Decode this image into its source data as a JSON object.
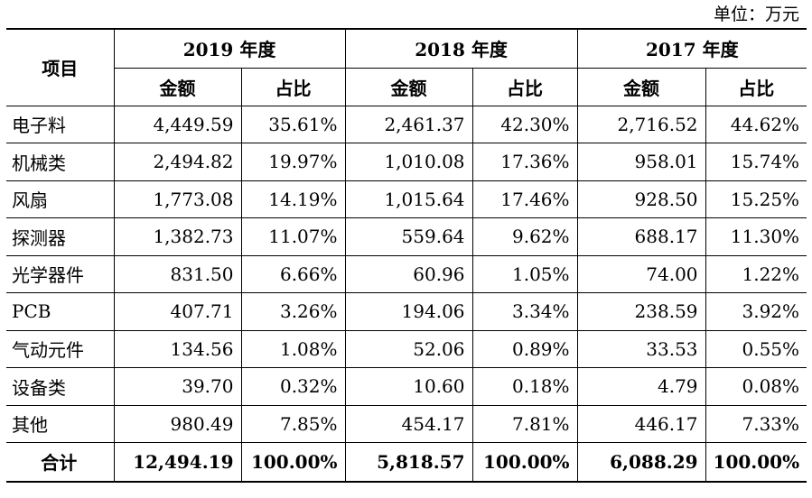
{
  "unit_label": "单位：万元",
  "header": {
    "item": "项目",
    "years": [
      "2019 年度",
      "2018 年度",
      "2017 年度"
    ],
    "amount": "金额",
    "ratio": "占比"
  },
  "rows": [
    {
      "name": "电子料",
      "v": [
        "4,449.59",
        "35.61%",
        "2,461.37",
        "42.30%",
        "2,716.52",
        "44.62%"
      ]
    },
    {
      "name": "机械类",
      "v": [
        "2,494.82",
        "19.97%",
        "1,010.08",
        "17.36%",
        "958.01",
        "15.74%"
      ]
    },
    {
      "name": "风扇",
      "v": [
        "1,773.08",
        "14.19%",
        "1,015.64",
        "17.46%",
        "928.50",
        "15.25%"
      ]
    },
    {
      "name": "探测器",
      "v": [
        "1,382.73",
        "11.07%",
        "559.64",
        "9.62%",
        "688.17",
        "11.30%"
      ]
    },
    {
      "name": "光学器件",
      "v": [
        "831.50",
        "6.66%",
        "60.96",
        "1.05%",
        "74.00",
        "1.22%"
      ]
    },
    {
      "name": "PCB",
      "v": [
        "407.71",
        "3.26%",
        "194.06",
        "3.34%",
        "238.59",
        "3.92%"
      ]
    },
    {
      "name": "气动元件",
      "v": [
        "134.56",
        "1.08%",
        "52.06",
        "0.89%",
        "33.53",
        "0.55%"
      ]
    },
    {
      "name": "设备类",
      "v": [
        "39.70",
        "0.32%",
        "10.60",
        "0.18%",
        "4.79",
        "0.08%"
      ]
    },
    {
      "name": "其他",
      "v": [
        "980.49",
        "7.85%",
        "454.17",
        "7.81%",
        "446.17",
        "7.33%"
      ]
    }
  ],
  "total": {
    "name": "合计",
    "v": [
      "12,494.19",
      "100.00%",
      "5,818.57",
      "100.00%",
      "6,088.29",
      "100.00%"
    ]
  }
}
